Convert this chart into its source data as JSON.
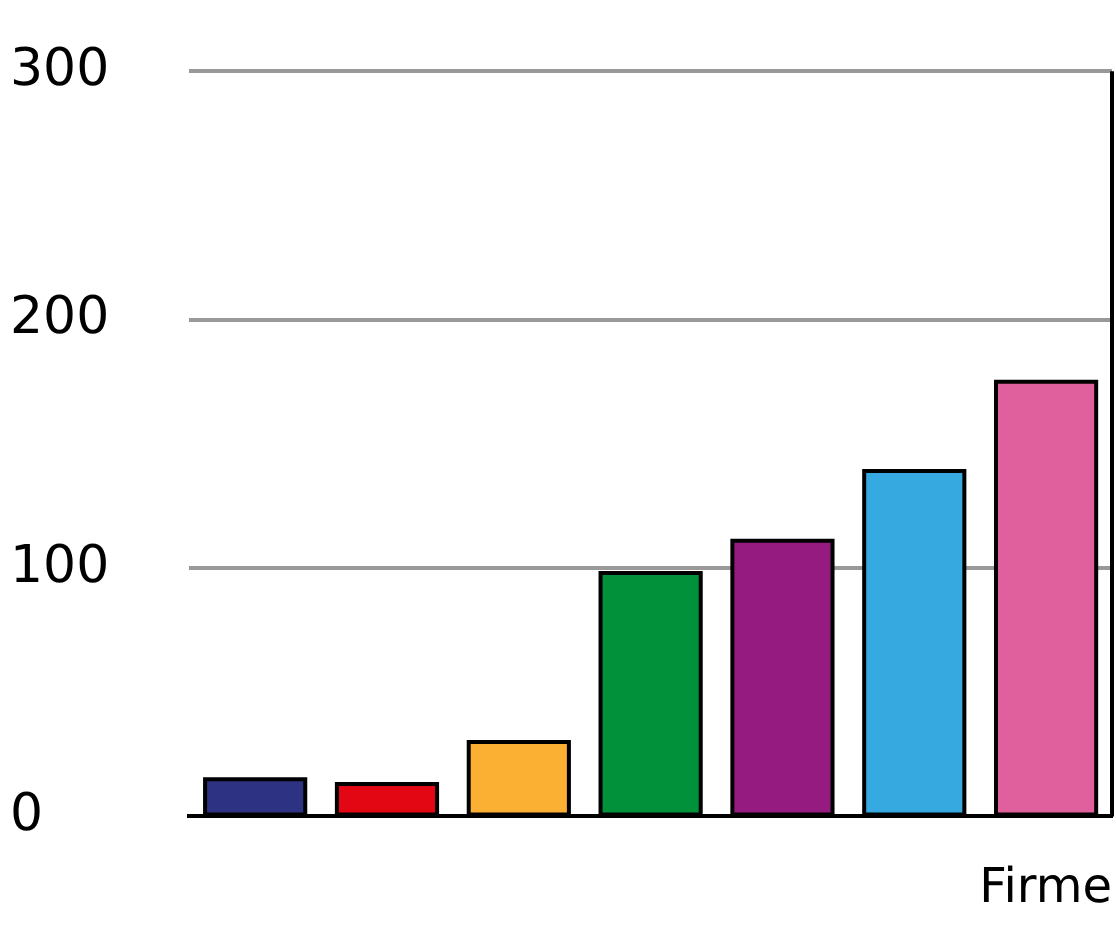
{
  "chart_data": {
    "type": "bar",
    "xlabel": "Firme",
    "categories": [
      null,
      null,
      null,
      null,
      null,
      null,
      null
    ],
    "values": [
      15,
      13,
      30,
      98,
      111,
      139,
      175
    ],
    "colors": [
      "#2e3282",
      "#e30613",
      "#fbb034",
      "#00913a",
      "#951b81",
      "#36a9e1",
      "#e0609d"
    ],
    "ylim": [
      0,
      300
    ],
    "yticks": [
      0,
      100,
      200,
      300
    ],
    "grid": "y",
    "legend": false
  }
}
